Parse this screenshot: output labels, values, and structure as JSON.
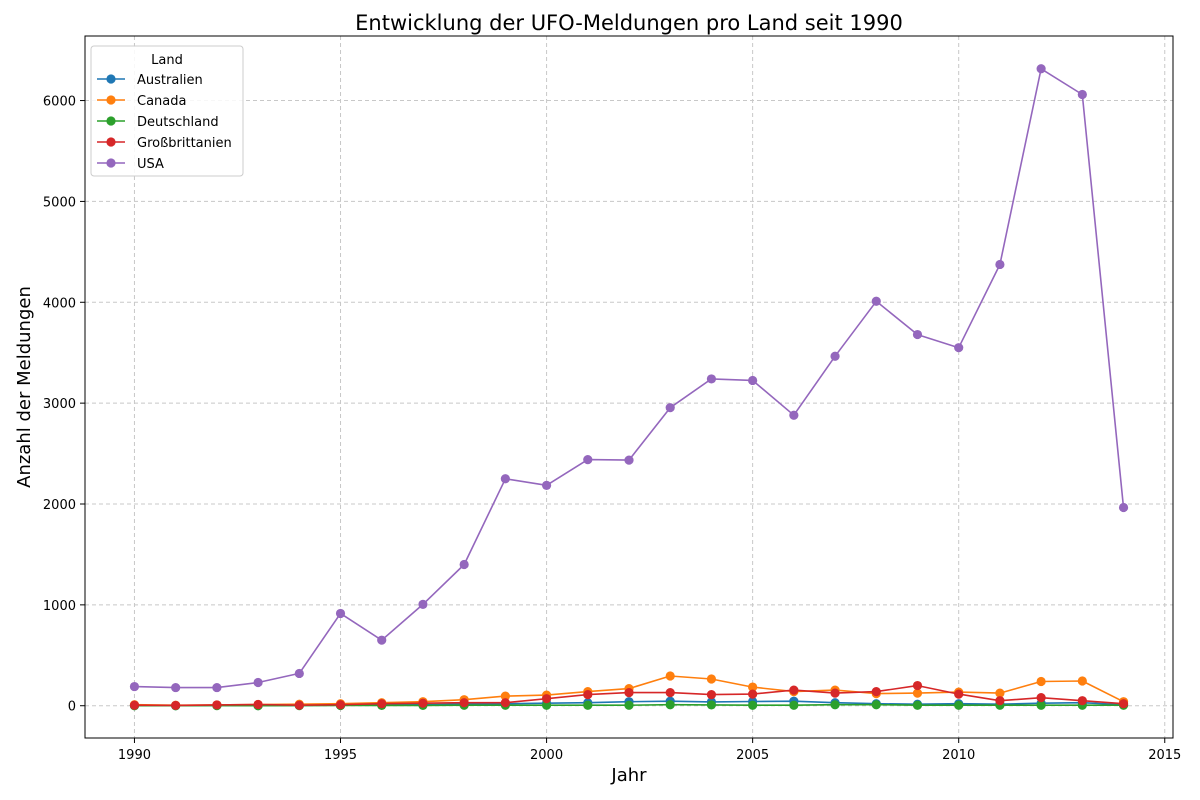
{
  "chart_data": {
    "type": "line",
    "title": "Entwicklung der UFO-Meldungen pro Land seit 1990",
    "xlabel": "Jahr",
    "ylabel": "Anzahl der Meldungen",
    "xlim": [
      1988.8,
      2015.2
    ],
    "ylim": [
      -320,
      6640
    ],
    "xticks": [
      1990,
      1995,
      2000,
      2005,
      2010,
      2015
    ],
    "yticks": [
      0,
      1000,
      2000,
      3000,
      4000,
      5000,
      6000
    ],
    "grid": true,
    "legend": {
      "title": "Land",
      "placement": "top-left"
    },
    "x": [
      1990,
      1991,
      1992,
      1993,
      1994,
      1995,
      1996,
      1997,
      1998,
      1999,
      2000,
      2001,
      2002,
      2003,
      2004,
      2005,
      2006,
      2007,
      2008,
      2009,
      2010,
      2011,
      2012,
      2013,
      2014
    ],
    "series": [
      {
        "name": "Australien",
        "color": "#1f77b4",
        "values": [
          2,
          1,
          3,
          2,
          3,
          5,
          8,
          12,
          15,
          20,
          25,
          30,
          40,
          45,
          38,
          42,
          45,
          30,
          20,
          15,
          20,
          15,
          25,
          30,
          10
        ]
      },
      {
        "name": "Canada",
        "color": "#ff7f0e",
        "values": [
          10,
          5,
          8,
          12,
          15,
          20,
          30,
          40,
          60,
          95,
          105,
          140,
          170,
          295,
          265,
          185,
          140,
          155,
          120,
          125,
          135,
          125,
          240,
          245,
          40
        ]
      },
      {
        "name": "Deutschland",
        "color": "#2ca02c",
        "values": [
          0,
          0,
          1,
          0,
          1,
          2,
          3,
          3,
          5,
          5,
          5,
          5,
          5,
          10,
          8,
          5,
          5,
          10,
          10,
          5,
          5,
          5,
          5,
          5,
          5
        ]
      },
      {
        "name": "Großbrittanien",
        "color": "#d62728",
        "values": [
          5,
          3,
          8,
          12,
          5,
          10,
          20,
          25,
          30,
          30,
          70,
          110,
          130,
          130,
          110,
          115,
          155,
          125,
          140,
          200,
          115,
          50,
          80,
          50,
          20
        ]
      },
      {
        "name": "USA",
        "color": "#9467bd",
        "values": [
          190,
          180,
          180,
          230,
          320,
          915,
          650,
          1005,
          1400,
          2250,
          2185,
          2440,
          2435,
          2955,
          3240,
          3225,
          2880,
          3465,
          4010,
          3680,
          3550,
          4375,
          6315,
          6060,
          1965
        ]
      }
    ]
  }
}
